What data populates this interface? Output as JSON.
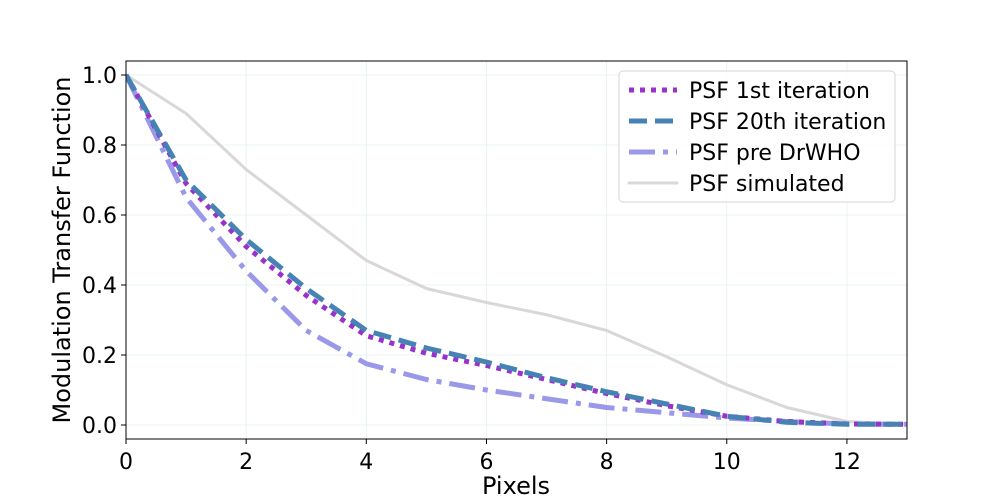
{
  "chart_data": {
    "type": "line",
    "title": "",
    "xlabel": "Pixels",
    "ylabel": "Modulation Transfer Function",
    "xlim": [
      0,
      13
    ],
    "ylim": [
      -0.04,
      1.04
    ],
    "grid": true,
    "legend_position": "top-right",
    "x_ticks": [
      0,
      2,
      4,
      6,
      8,
      10,
      12
    ],
    "x_tick_labels": [
      "0",
      "2",
      "4",
      "6",
      "8",
      "10",
      "12"
    ],
    "y_ticks": [
      0.0,
      0.2,
      0.4,
      0.6,
      0.8,
      1.0
    ],
    "y_tick_labels": [
      "0.0",
      "0.2",
      "0.4",
      "0.6",
      "0.8",
      "1.0"
    ],
    "series": [
      {
        "name": "PSF 1st iteration",
        "color": "#9932cc",
        "style": "dotted",
        "x": [
          0,
          1,
          2,
          3,
          4,
          5,
          6,
          7,
          8,
          9,
          10,
          11,
          12,
          13
        ],
        "y": [
          1.0,
          0.69,
          0.51,
          0.37,
          0.255,
          0.205,
          0.17,
          0.13,
          0.09,
          0.055,
          0.025,
          0.01,
          0.003,
          0.002
        ]
      },
      {
        "name": "PSF 20th iteration",
        "color": "#4682b4",
        "style": "dashed",
        "x": [
          0,
          1,
          2,
          3,
          4,
          5,
          6,
          7,
          8,
          9,
          10,
          11,
          12,
          13
        ],
        "y": [
          1.0,
          0.7,
          0.53,
          0.39,
          0.27,
          0.22,
          0.18,
          0.135,
          0.095,
          0.06,
          0.025,
          0.008,
          0.002,
          0.002
        ]
      },
      {
        "name": "PSF pre DrWHO",
        "color": "#9a98e8",
        "style": "dashdot",
        "x": [
          0,
          1,
          2,
          3,
          4,
          5,
          6,
          7,
          8,
          9,
          10,
          11,
          12,
          13
        ],
        "y": [
          1.0,
          0.65,
          0.44,
          0.27,
          0.175,
          0.13,
          0.1,
          0.075,
          0.05,
          0.035,
          0.02,
          0.01,
          0.003,
          0.002
        ]
      },
      {
        "name": "PSF simulated",
        "color": "#d8d8d8",
        "style": "solid",
        "x": [
          0,
          1,
          2,
          3,
          4,
          5,
          6,
          7,
          8,
          9,
          10,
          11,
          12,
          13
        ],
        "y": [
          1.0,
          0.89,
          0.73,
          0.6,
          0.47,
          0.39,
          0.35,
          0.315,
          0.27,
          0.195,
          0.115,
          0.05,
          0.01,
          0.002
        ]
      }
    ]
  }
}
